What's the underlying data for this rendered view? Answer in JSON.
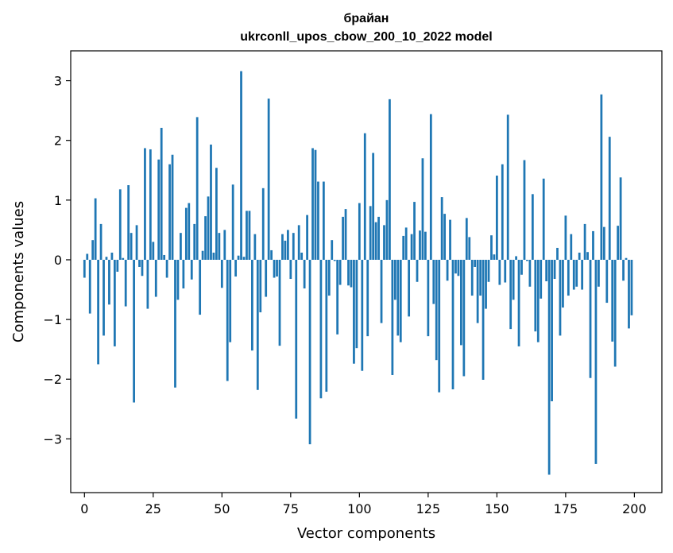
{
  "chart_data": {
    "type": "bar",
    "title_line1": "брайан",
    "title_line2": "ukrconll_upos_cbow_200_10_2022 model",
    "xlabel": "Vector components",
    "ylabel": "Components values",
    "xlim": [
      -5,
      210
    ],
    "ylim": [
      -3.9,
      3.5
    ],
    "xticks": [
      0,
      25,
      50,
      75,
      100,
      125,
      150,
      175,
      200
    ],
    "yticks": [
      -3,
      -2,
      -1,
      0,
      1,
      2,
      3
    ],
    "ytick_labels": [
      "−3",
      "−2",
      "−1",
      "0",
      "1",
      "2",
      "3"
    ],
    "bar_color": "#1f77b4",
    "grid": false,
    "x": [
      0,
      1,
      2,
      3,
      4,
      5,
      6,
      7,
      8,
      9,
      10,
      11,
      12,
      13,
      14,
      15,
      16,
      17,
      18,
      19,
      20,
      21,
      22,
      23,
      24,
      25,
      26,
      27,
      28,
      29,
      30,
      31,
      32,
      33,
      34,
      35,
      36,
      37,
      38,
      39,
      40,
      41,
      42,
      43,
      44,
      45,
      46,
      47,
      48,
      49,
      50,
      51,
      52,
      53,
      54,
      55,
      56,
      57,
      58,
      59,
      60,
      61,
      62,
      63,
      64,
      65,
      66,
      67,
      68,
      69,
      70,
      71,
      72,
      73,
      74,
      75,
      76,
      77,
      78,
      79,
      80,
      81,
      82,
      83,
      84,
      85,
      86,
      87,
      88,
      89,
      90,
      91,
      92,
      93,
      94,
      95,
      96,
      97,
      98,
      99,
      100,
      101,
      102,
      103,
      104,
      105,
      106,
      107,
      108,
      109,
      110,
      111,
      112,
      113,
      114,
      115,
      116,
      117,
      118,
      119,
      120,
      121,
      122,
      123,
      124,
      125,
      126,
      127,
      128,
      129,
      130,
      131,
      132,
      133,
      134,
      135,
      136,
      137,
      138,
      139,
      140,
      141,
      142,
      143,
      144,
      145,
      146,
      147,
      148,
      149,
      150,
      151,
      152,
      153,
      154,
      155,
      156,
      157,
      158,
      159,
      160,
      161,
      162,
      163,
      164,
      165,
      166,
      167,
      168,
      169,
      170,
      171,
      172,
      173,
      174,
      175,
      176,
      177,
      178,
      179,
      180,
      181,
      182,
      183,
      184,
      185,
      186,
      187,
      188,
      189,
      190,
      191,
      192,
      193,
      194,
      195,
      196,
      197,
      198,
      199
    ],
    "values": [
      -0.3,
      0.1,
      -0.9,
      0.33,
      1.03,
      -1.75,
      0.6,
      -1.27,
      0.05,
      -0.75,
      0.12,
      -1.45,
      -0.2,
      1.18,
      0.03,
      -0.78,
      1.25,
      0.45,
      -2.39,
      0.58,
      -0.12,
      -0.27,
      1.87,
      -0.82,
      1.85,
      0.3,
      -0.62,
      1.68,
      2.21,
      0.08,
      -0.3,
      1.6,
      1.76,
      -2.14,
      -0.67,
      0.45,
      -0.48,
      0.87,
      0.95,
      -0.33,
      0.6,
      2.39,
      -0.92,
      0.15,
      0.73,
      1.06,
      1.93,
      0.12,
      1.54,
      0.45,
      -0.47,
      0.5,
      -2.03,
      -1.38,
      1.26,
      -0.28,
      0.07,
      3.16,
      0.05,
      0.82,
      0.82,
      -1.52,
      0.43,
      -2.18,
      -0.88,
      1.2,
      -0.62,
      2.7,
      0.16,
      -0.3,
      -0.28,
      -1.44,
      0.43,
      0.32,
      0.5,
      -0.32,
      0.45,
      -2.66,
      0.58,
      0.12,
      -0.48,
      0.75,
      -3.09,
      1.87,
      1.84,
      1.31,
      -2.32,
      1.31,
      -2.21,
      -0.6,
      0.33,
      -0.02,
      -1.25,
      -0.42,
      0.72,
      0.85,
      -0.43,
      -0.46,
      -1.74,
      -1.48,
      0.95,
      -1.86,
      2.12,
      -1.28,
      0.9,
      1.79,
      0.63,
      0.72,
      -1.06,
      0.58,
      1.0,
      2.69,
      -1.93,
      -0.67,
      -1.27,
      -1.38,
      0.4,
      0.54,
      -0.95,
      0.43,
      0.97,
      -0.37,
      0.49,
      1.7,
      0.47,
      -1.28,
      2.44,
      -0.74,
      -1.68,
      -2.22,
      1.05,
      0.77,
      -0.35,
      0.67,
      -2.17,
      -0.23,
      -0.27,
      -1.43,
      -1.95,
      0.7,
      0.38,
      -0.6,
      -0.12,
      -1.06,
      -0.6,
      -2.01,
      -0.82,
      -0.37,
      0.41,
      0.09,
      1.41,
      -0.42,
      1.6,
      -0.38,
      2.43,
      -1.16,
      -0.67,
      0.06,
      -1.45,
      -0.25,
      1.67,
      -0.02,
      -0.45,
      1.1,
      -1.2,
      -1.38,
      -0.65,
      1.36,
      -0.36,
      -3.6,
      -2.37,
      -0.32,
      0.2,
      -1.27,
      -0.8,
      0.74,
      -0.6,
      0.43,
      -0.5,
      -0.45,
      0.12,
      -0.5,
      0.6,
      0.13,
      -1.98,
      0.48,
      -3.42,
      -0.45,
      2.77,
      0.55,
      -0.72,
      2.06,
      -1.37,
      -1.79,
      0.57,
      1.38,
      -0.35,
      0.03,
      -1.15,
      -0.93
    ]
  }
}
